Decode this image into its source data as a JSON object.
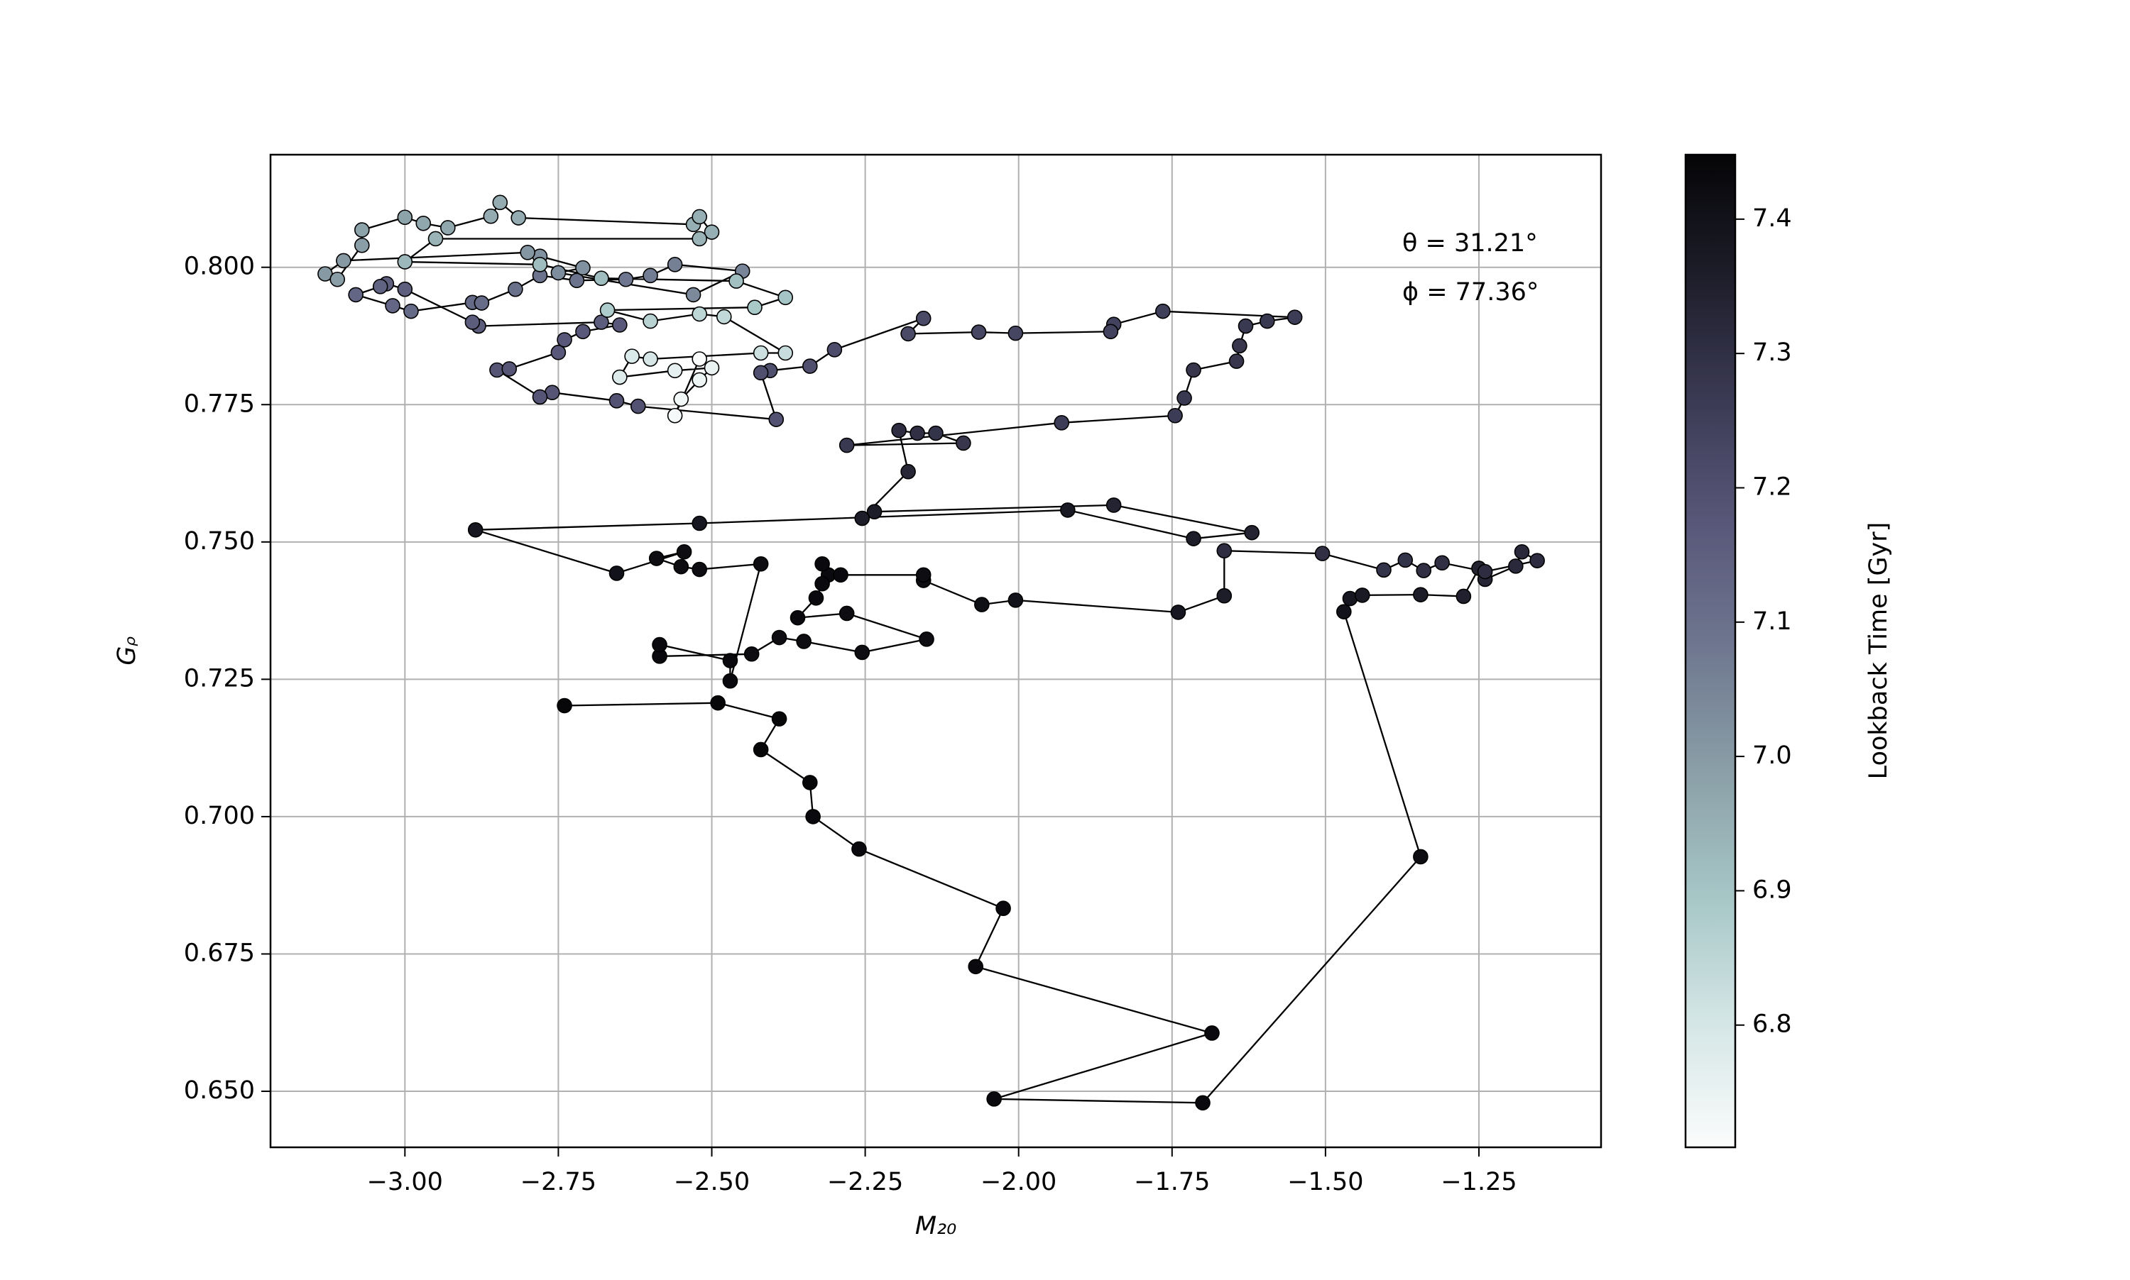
{
  "chart_data": {
    "type": "scatter",
    "xlabel": "M₂₀",
    "ylabel": "Gᵨ",
    "colorbar_label": "Lookback Time [Gyr]",
    "annotations": [
      "θ = 31.21°",
      "ϕ = 77.36°"
    ],
    "xlim": [
      -3.219,
      -1.051
    ],
    "ylim": [
      0.6398,
      0.8205
    ],
    "clim": [
      6.709,
      7.448
    ],
    "xticks": [
      {
        "value": -3.0,
        "label": "−3.00"
      },
      {
        "value": -2.75,
        "label": "−2.75"
      },
      {
        "value": -2.5,
        "label": "−2.50"
      },
      {
        "value": -2.25,
        "label": "−2.25"
      },
      {
        "value": -2.0,
        "label": "−2.00"
      },
      {
        "value": -1.75,
        "label": "−1.75"
      },
      {
        "value": -1.5,
        "label": "−1.50"
      },
      {
        "value": -1.25,
        "label": "−1.25"
      }
    ],
    "yticks": [
      {
        "value": 0.65,
        "label": "0.650"
      },
      {
        "value": 0.675,
        "label": "0.675"
      },
      {
        "value": 0.7,
        "label": "0.700"
      },
      {
        "value": 0.725,
        "label": "0.725"
      },
      {
        "value": 0.75,
        "label": "0.750"
      },
      {
        "value": 0.775,
        "label": "0.775"
      },
      {
        "value": 0.8,
        "label": "0.800"
      }
    ],
    "cticks": [
      {
        "value": 6.8,
        "label": "6.8"
      },
      {
        "value": 6.9,
        "label": "6.9"
      },
      {
        "value": 7.0,
        "label": "7.0"
      },
      {
        "value": 7.1,
        "label": "7.1"
      },
      {
        "value": 7.2,
        "label": "7.2"
      },
      {
        "value": 7.3,
        "label": "7.3"
      },
      {
        "value": 7.4,
        "label": "7.4"
      }
    ],
    "grid": true,
    "line_color": "#000000",
    "colormap": [
      "#fbfcfc",
      "#d5e6e6",
      "#a7c7c7",
      "#8ba0a8",
      "#6f7890",
      "#59587a",
      "#3c3b55",
      "#1e1e2b",
      "#050507"
    ],
    "x": [
      -2.74,
      -2.49,
      -2.39,
      -2.42,
      -2.34,
      -2.335,
      -2.26,
      -2.025,
      -2.07,
      -1.685,
      -2.04,
      -1.7,
      -1.345,
      -1.47,
      -1.46,
      -1.44,
      -1.345,
      -1.275,
      -1.25,
      -1.24,
      -1.19,
      -1.18,
      -1.155,
      -1.24,
      -1.31,
      -1.34,
      -1.37,
      -1.405,
      -1.505,
      -1.665,
      -1.665,
      -1.74,
      -2.005,
      -2.06,
      -2.155,
      -2.155,
      -2.31,
      -2.32,
      -2.29,
      -2.32,
      -2.33,
      -2.36,
      -2.28,
      -2.15,
      -2.255,
      -2.35,
      -2.39,
      -2.435,
      -2.585,
      -2.585,
      -2.47,
      -2.47,
      -2.42,
      -2.52,
      -2.55,
      -2.59,
      -2.545,
      -2.655,
      -2.885,
      -2.52,
      -1.92,
      -1.715,
      -1.62,
      -1.845,
      -2.235,
      -2.255,
      -2.18,
      -2.195,
      -2.165,
      -2.135,
      -2.09,
      -2.28,
      -1.93,
      -1.745,
      -1.73,
      -1.715,
      -1.645,
      -1.64,
      -1.63,
      -1.595,
      -1.55,
      -1.765,
      -1.845,
      -1.85,
      -2.005,
      -2.065,
      -2.18,
      -2.155,
      -2.3,
      -2.34,
      -2.405,
      -2.42,
      -2.395,
      -2.62,
      -2.655,
      -2.76,
      -2.78,
      -2.85,
      -2.83,
      -2.75,
      -2.74,
      -2.71,
      -2.65,
      -2.68,
      -2.88,
      -2.89,
      -3.0,
      -3.03,
      -3.04,
      -3.08,
      -3.02,
      -2.99,
      -2.89,
      -2.875,
      -2.82,
      -2.78,
      -2.72,
      -2.64,
      -2.6,
      -2.56,
      -2.45,
      -2.53,
      -2.75,
      -2.71,
      -2.78,
      -2.8,
      -3.1,
      -3.13,
      -3.11,
      -3.07,
      -3.07,
      -3.0,
      -2.97,
      -2.93,
      -2.86,
      -2.845,
      -2.815,
      -2.53,
      -2.52,
      -2.5,
      -2.52,
      -2.95,
      -3.0,
      -2.78,
      -2.68,
      -2.46,
      -2.38,
      -2.43,
      -2.67,
      -2.6,
      -2.52,
      -2.48,
      -2.38,
      -2.42,
      -2.6,
      -2.63,
      -2.65,
      -2.56,
      -2.5,
      -2.52,
      -2.55,
      -2.56,
      -2.52
    ],
    "y": [
      0.7202,
      0.7207,
      0.7178,
      0.7122,
      0.7062,
      0.7,
      0.6941,
      0.6833,
      0.6727,
      0.6606,
      0.6486,
      0.6479,
      0.6927,
      0.7373,
      0.7397,
      0.7403,
      0.7404,
      0.7401,
      0.7452,
      0.7432,
      0.7456,
      0.7482,
      0.7466,
      0.7446,
      0.7462,
      0.7448,
      0.7467,
      0.7449,
      0.7479,
      0.7484,
      0.7402,
      0.7372,
      0.7394,
      0.7386,
      0.743,
      0.744,
      0.744,
      0.746,
      0.744,
      0.7424,
      0.7398,
      0.7362,
      0.737,
      0.7323,
      0.7299,
      0.7319,
      0.7326,
      0.7296,
      0.7292,
      0.7313,
      0.7284,
      0.7247,
      0.746,
      0.745,
      0.7455,
      0.747,
      0.7482,
      0.7443,
      0.7522,
      0.7534,
      0.7558,
      0.7506,
      0.7517,
      0.7567,
      0.7555,
      0.7543,
      0.7628,
      0.7703,
      0.7698,
      0.7698,
      0.768,
      0.7676,
      0.7717,
      0.773,
      0.7762,
      0.7813,
      0.7829,
      0.7857,
      0.7893,
      0.7902,
      0.7909,
      0.792,
      0.7896,
      0.7883,
      0.788,
      0.7882,
      0.7879,
      0.7907,
      0.785,
      0.782,
      0.7812,
      0.7808,
      0.7723,
      0.7747,
      0.7757,
      0.7772,
      0.7764,
      0.7813,
      0.7815,
      0.7845,
      0.7868,
      0.7883,
      0.7895,
      0.79,
      0.7893,
      0.79,
      0.796,
      0.797,
      0.7965,
      0.795,
      0.793,
      0.792,
      0.7936,
      0.7935,
      0.796,
      0.7985,
      0.7976,
      0.7978,
      0.7985,
      0.8005,
      0.7993,
      0.795,
      0.799,
      0.7999,
      0.802,
      0.8027,
      0.8012,
      0.7988,
      0.7978,
      0.804,
      0.8068,
      0.8091,
      0.808,
      0.8072,
      0.8093,
      0.8118,
      0.809,
      0.8078,
      0.8092,
      0.8064,
      0.8052,
      0.8052,
      0.801,
      0.8005,
      0.798,
      0.7975,
      0.7945,
      0.7927,
      0.7922,
      0.7902,
      0.7915,
      0.791,
      0.7844,
      0.7844,
      0.7833,
      0.7838,
      0.78,
      0.7812,
      0.7817,
      0.7795,
      0.776,
      0.773,
      0.7833
    ],
    "c": [
      7.44,
      7.44,
      7.44,
      7.44,
      7.44,
      7.43,
      7.43,
      7.43,
      7.43,
      7.43,
      7.43,
      7.43,
      7.42,
      7.4,
      7.38,
      7.37,
      7.36,
      7.35,
      7.34,
      7.33,
      7.32,
      7.32,
      7.31,
      7.31,
      7.3,
      7.3,
      7.29,
      7.29,
      7.3,
      7.31,
      7.36,
      7.38,
      7.4,
      7.41,
      7.42,
      7.42,
      7.43,
      7.43,
      7.43,
      7.43,
      7.43,
      7.43,
      7.42,
      7.42,
      7.42,
      7.42,
      7.42,
      7.42,
      7.43,
      7.43,
      7.43,
      7.43,
      7.42,
      7.42,
      7.42,
      7.42,
      7.42,
      7.4,
      7.38,
      7.38,
      7.37,
      7.36,
      7.34,
      7.34,
      7.36,
      7.36,
      7.33,
      7.31,
      7.3,
      7.29,
      7.28,
      7.27,
      7.26,
      7.26,
      7.27,
      7.28,
      7.28,
      7.28,
      7.27,
      7.27,
      7.26,
      7.25,
      7.24,
      7.24,
      7.23,
      7.23,
      7.22,
      7.22,
      7.21,
      7.2,
      7.2,
      7.2,
      7.19,
      7.19,
      7.19,
      7.18,
      7.18,
      7.18,
      7.18,
      7.17,
      7.17,
      7.17,
      7.17,
      7.16,
      7.16,
      7.16,
      7.15,
      7.15,
      7.14,
      7.13,
      7.13,
      7.12,
      7.12,
      7.11,
      7.1,
      7.09,
      7.09,
      7.08,
      7.07,
      7.06,
      7.05,
      7.04,
      7.03,
      7.02,
      7.02,
      7.01,
      7.0,
      7.0,
      6.99,
      6.99,
      6.98,
      6.98,
      6.97,
      6.97,
      6.96,
      6.96,
      6.96,
      6.95,
      6.95,
      6.95,
      6.94,
      6.94,
      6.93,
      6.92,
      6.92,
      6.91,
      6.9,
      6.89,
      6.88,
      6.86,
      6.85,
      6.84,
      6.83,
      6.82,
      6.8,
      6.79,
      6.78,
      6.76,
      6.75,
      6.74,
      6.73,
      6.72,
      6.71
    ]
  }
}
